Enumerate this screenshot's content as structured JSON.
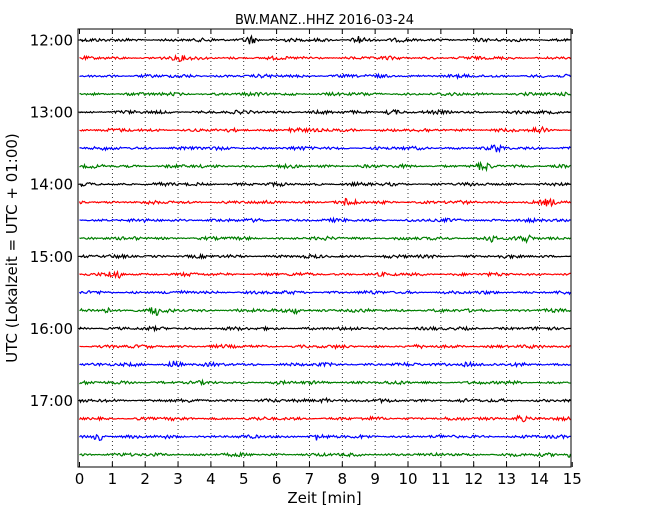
{
  "chart_data": {
    "type": "line",
    "title": "BW.MANZ..HHZ 2016-03-24",
    "xlabel": "Zeit  [min]",
    "ylabel": "UTC (Lokalzeit = UTC + 01:00)",
    "xlim": [
      0,
      15
    ],
    "x_ticks": [
      "0",
      "1",
      "2",
      "3",
      "4",
      "5",
      "6",
      "7",
      "8",
      "9",
      "10",
      "11",
      "12",
      "13",
      "14",
      "15"
    ],
    "y_ticks": [
      "12:00",
      "13:00",
      "14:00",
      "15:00",
      "16:00",
      "17:00"
    ],
    "grid": "vertical dotted lines at each minute",
    "trace_colors": [
      "#000000",
      "#ff0000",
      "#0000ff",
      "#007f00"
    ],
    "trace_start_times": [
      "12:00",
      "12:15",
      "12:30",
      "12:45",
      "13:00",
      "13:15",
      "13:30",
      "13:45",
      "14:00",
      "14:15",
      "14:30",
      "14:45",
      "15:00",
      "15:15",
      "15:30",
      "15:45",
      "16:00",
      "16:15",
      "16:30",
      "16:45",
      "17:00",
      "17:15",
      "17:30",
      "17:45"
    ],
    "trace_minutes_per_line": 15,
    "bursts": [
      {
        "trace": 0,
        "minute": 5.2,
        "amp": 2.5
      },
      {
        "trace": 0,
        "minute": 8.5,
        "amp": 2.5
      },
      {
        "trace": 1,
        "minute": 3.0,
        "amp": 1.5
      },
      {
        "trace": 4,
        "minute": 9.5,
        "amp": 1.5
      },
      {
        "trace": 5,
        "minute": 6.5,
        "amp": 2.0
      },
      {
        "trace": 5,
        "minute": 14.0,
        "amp": 1.8
      },
      {
        "trace": 6,
        "minute": 12.7,
        "amp": 1.5
      },
      {
        "trace": 7,
        "minute": 12.3,
        "amp": 2.0
      },
      {
        "trace": 9,
        "minute": 8.2,
        "amp": 2.0
      },
      {
        "trace": 9,
        "minute": 14.3,
        "amp": 1.8
      },
      {
        "trace": 11,
        "minute": 12.5,
        "amp": 2.2
      },
      {
        "trace": 11,
        "minute": 13.6,
        "amp": 1.8
      },
      {
        "trace": 13,
        "minute": 1.1,
        "amp": 2.5
      },
      {
        "trace": 15,
        "minute": 0.8,
        "amp": 1.8
      },
      {
        "trace": 15,
        "minute": 2.3,
        "amp": 2.5
      },
      {
        "trace": 15,
        "minute": 6.6,
        "amp": 1.8
      },
      {
        "trace": 18,
        "minute": 2.9,
        "amp": 2.0
      },
      {
        "trace": 18,
        "minute": 11.8,
        "amp": 1.5
      },
      {
        "trace": 20,
        "minute": 7.5,
        "amp": 1.5
      },
      {
        "trace": 21,
        "minute": 13.4,
        "amp": 2.0
      },
      {
        "trace": 22,
        "minute": 0.6,
        "amp": 2.0
      },
      {
        "trace": 22,
        "minute": 7.2,
        "amp": 1.8
      },
      {
        "trace": 23,
        "minute": 15.0,
        "amp": 2.0
      }
    ]
  }
}
